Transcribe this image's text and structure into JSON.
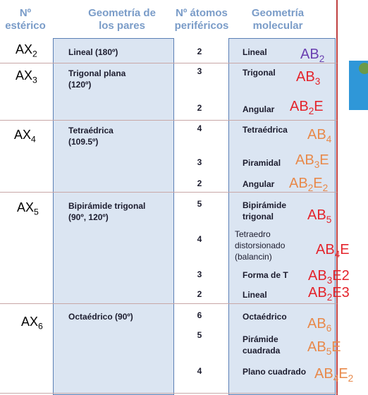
{
  "headers": {
    "col1": [
      "Nº",
      "estérico"
    ],
    "col2": [
      "Geometría de",
      "los pares"
    ],
    "col3": [
      "Nº átomos",
      "periféricos"
    ],
    "col4": [
      "Geometría",
      "molecular"
    ]
  },
  "rows": [
    {
      "ax": "AX",
      "ax_sub": "2",
      "pairs": [
        "Lineal (180º)"
      ],
      "entries": [
        {
          "count": "2",
          "molecular": [
            "Lineal"
          ],
          "ab": "AB",
          "ab_sub": "2",
          "ab_tail": "",
          "ab_sub2": "",
          "ab_color": "#6a3fb0"
        }
      ]
    },
    {
      "ax": "AX",
      "ax_sub": "3",
      "pairs": [
        "Trigonal plana",
        "(120º)"
      ],
      "entries": [
        {
          "count": "3",
          "molecular": [
            "Trigonal"
          ],
          "ab": "AB",
          "ab_sub": "3",
          "ab_tail": "",
          "ab_sub2": "",
          "ab_color": "#e4242c"
        },
        {
          "count": "2",
          "molecular": [
            "Angular"
          ],
          "ab": "AB",
          "ab_sub": "2",
          "ab_tail": "E",
          "ab_sub2": "",
          "ab_color": "#e4242c"
        }
      ]
    },
    {
      "ax": "AX",
      "ax_sub": "4",
      "pairs": [
        "Tetraédrica",
        "(109.5º)"
      ],
      "entries": [
        {
          "count": "4",
          "molecular": [
            "Tetraédrica"
          ],
          "ab": "AB",
          "ab_sub": "4",
          "ab_tail": "",
          "ab_sub2": "",
          "ab_color": "#e8894a"
        },
        {
          "count": "3",
          "molecular": [
            "Piramidal"
          ],
          "ab": "AB",
          "ab_sub": "3",
          "ab_tail": "E",
          "ab_sub2": "",
          "ab_color": "#e8894a"
        },
        {
          "count": "2",
          "molecular": [
            "Angular"
          ],
          "ab": "AB",
          "ab_sub": "2",
          "ab_tail": "E",
          "ab_sub2": "2",
          "ab_color": "#e8894a"
        }
      ]
    },
    {
      "ax": "AX",
      "ax_sub": "5",
      "pairs": [
        "Bipirámide trigonal",
        "(90º, 120º)"
      ],
      "entries": [
        {
          "count": "5",
          "molecular": [
            "Bipirámide",
            "trigonal"
          ],
          "ab": "AB",
          "ab_sub": "5",
          "ab_tail": "",
          "ab_sub2": "",
          "ab_color": "#e4242c"
        },
        {
          "count": "4",
          "molecular": [
            "Tetraedro",
            "distorsionado",
            "(balancin)"
          ],
          "ab": "AB",
          "ab_sub": "4",
          "ab_tail": "E",
          "ab_sub2": "",
          "ab_color": "#e4242c"
        },
        {
          "count": "3",
          "molecular": [
            "Forma de T"
          ],
          "ab": "AB",
          "ab_sub": "3",
          "ab_tail": "E2",
          "ab_sub2": "",
          "ab_color": "#e4242c"
        },
        {
          "count": "2",
          "molecular": [
            "Lineal"
          ],
          "ab": "AB",
          "ab_sub": "2",
          "ab_tail": "E3",
          "ab_sub2": "",
          "ab_color": "#e4242c"
        }
      ]
    },
    {
      "ax": "AX",
      "ax_sub": "6",
      "pairs": [
        "Octaédrico (90º)"
      ],
      "entries": [
        {
          "count": "6",
          "molecular": [
            "Octaédrico"
          ],
          "ab": "AB",
          "ab_sub": "6",
          "ab_tail": "",
          "ab_sub2": "",
          "ab_color": "#e8894a"
        },
        {
          "count": "5",
          "molecular": [
            "Pirámide",
            "cuadrada"
          ],
          "ab": "AB",
          "ab_sub": "5",
          "ab_tail": "E",
          "ab_sub2": "",
          "ab_color": "#e8894a"
        },
        {
          "count": "4",
          "molecular": [
            "Plano cuadrado"
          ],
          "ab": "AB",
          "ab_sub": "4",
          "ab_tail": "E",
          "ab_sub2": "2",
          "ab_color": "#e8894a"
        }
      ]
    }
  ]
}
